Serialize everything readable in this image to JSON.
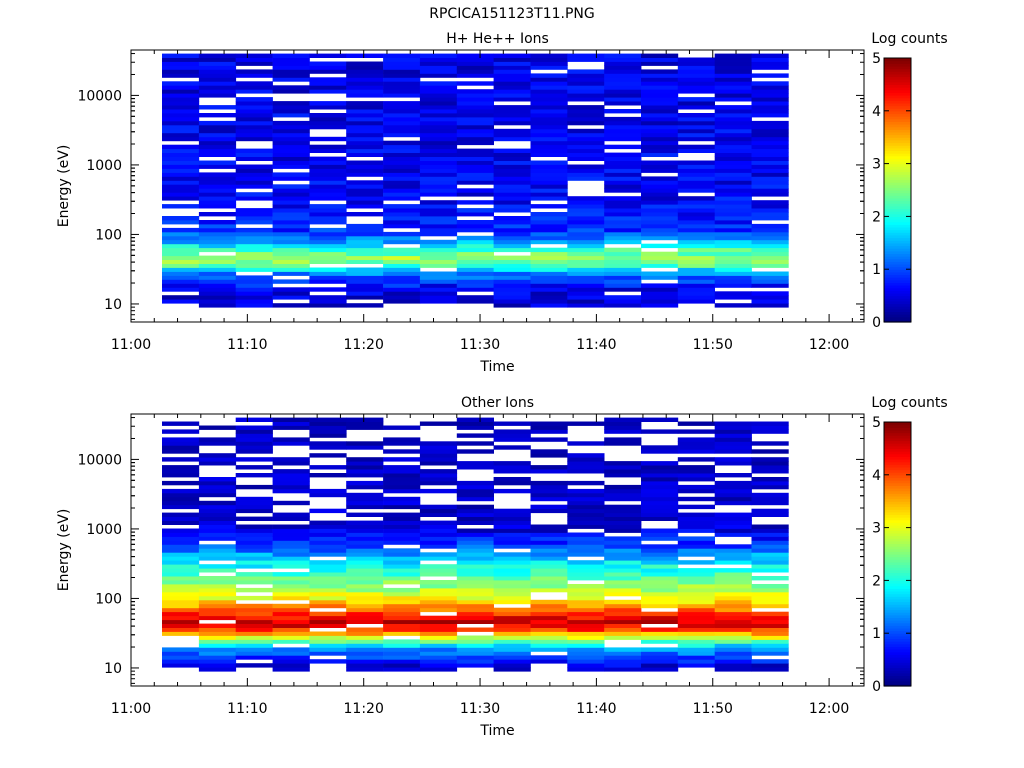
{
  "page_title": "RPCICA151123T11.PNG",
  "chart_data": [
    {
      "type": "heatmap",
      "title": "H+ He++ Ions",
      "xlabel": "Time",
      "ylabel": "Energy (eV)",
      "x_scale": "time",
      "x_range": [
        "11:00",
        "12:03"
      ],
      "x_ticks": [
        "11:00",
        "11:10",
        "11:20",
        "11:30",
        "11:40",
        "11:50",
        "12:00"
      ],
      "y_scale": "log",
      "y_range": [
        5.5,
        45000
      ],
      "y_ticks": [
        "10",
        "100",
        "1000",
        "10000"
      ],
      "colorbar": {
        "label": "Log counts",
        "range": [
          0,
          5
        ],
        "ticks": [
          "0",
          "1",
          "2",
          "3",
          "4",
          "5"
        ],
        "colormap": "jet"
      },
      "columns_start": [
        "11:02:40",
        "11:05:50",
        "11:09:00",
        "11:12:10",
        "11:15:20",
        "11:18:30",
        "11:21:40",
        "11:24:50",
        "11:28:00",
        "11:31:10",
        "11:34:20",
        "11:37:30",
        "11:40:40",
        "11:43:50",
        "11:47:00",
        "11:50:10",
        "11:53:20"
      ],
      "columns_end": "11:56:30",
      "energy_range": [
        9,
        40000
      ],
      "energy_bins": 64,
      "profile": [
        {
          "energy": 9,
          "value": 0.4
        },
        {
          "energy": 16,
          "value": 0.5
        },
        {
          "energy": 27,
          "value": 1.2
        },
        {
          "energy": 35,
          "value": 2.2
        },
        {
          "energy": 45,
          "value": 2.7
        },
        {
          "energy": 60,
          "value": 2.2
        },
        {
          "energy": 80,
          "value": 1.4
        },
        {
          "energy": 120,
          "value": 0.8
        },
        {
          "energy": 300,
          "value": 0.6
        },
        {
          "energy": 1000,
          "value": 0.55
        },
        {
          "energy": 40000,
          "value": 0.5
        }
      ],
      "empty_fraction": 0.12
    },
    {
      "type": "heatmap",
      "title": "Other Ions",
      "xlabel": "Time",
      "ylabel": "Energy (eV)",
      "x_scale": "time",
      "x_range": [
        "11:00",
        "12:03"
      ],
      "x_ticks": [
        "11:00",
        "11:10",
        "11:20",
        "11:30",
        "11:40",
        "11:50",
        "12:00"
      ],
      "y_scale": "log",
      "y_range": [
        5.5,
        45000
      ],
      "y_ticks": [
        "10",
        "100",
        "1000",
        "10000"
      ],
      "colorbar": {
        "label": "Log counts",
        "range": [
          0,
          5
        ],
        "ticks": [
          "0",
          "1",
          "2",
          "3",
          "4",
          "5"
        ],
        "colormap": "jet"
      },
      "columns_start": [
        "11:02:40",
        "11:05:50",
        "11:09:00",
        "11:12:10",
        "11:15:20",
        "11:18:30",
        "11:21:40",
        "11:24:50",
        "11:28:00",
        "11:31:10",
        "11:34:20",
        "11:37:30",
        "11:40:40",
        "11:43:50",
        "11:47:00",
        "11:50:10",
        "11:53:20"
      ],
      "columns_end": "11:56:30",
      "energy_range": [
        9,
        40000
      ],
      "energy_bins": 64,
      "profile": [
        {
          "energy": 10,
          "value": 0.3
        },
        {
          "energy": 20,
          "value": 1.5
        },
        {
          "energy": 28,
          "value": 3.0
        },
        {
          "energy": 38,
          "value": 4.4
        },
        {
          "energy": 48,
          "value": 4.6
        },
        {
          "energy": 65,
          "value": 4.0
        },
        {
          "energy": 90,
          "value": 3.3
        },
        {
          "energy": 150,
          "value": 2.6
        },
        {
          "energy": 300,
          "value": 1.9
        },
        {
          "energy": 600,
          "value": 0.9
        },
        {
          "energy": 1200,
          "value": 0.3
        },
        {
          "energy": 40000,
          "value": 0.2
        }
      ],
      "empty_fraction": 0.1
    }
  ]
}
